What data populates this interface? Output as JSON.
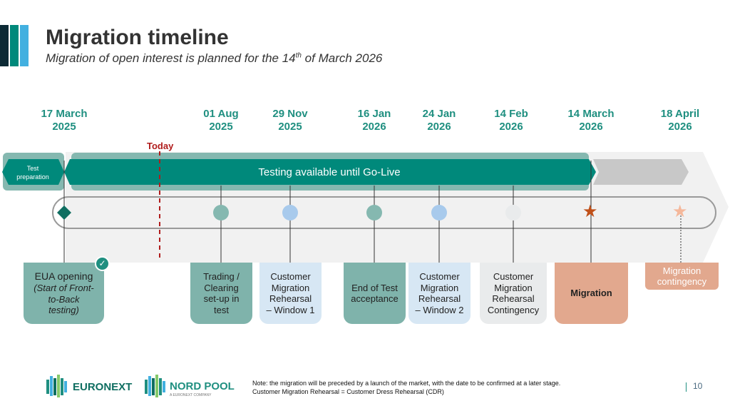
{
  "header": {
    "title": "Migration timeline",
    "subtitle_prefix": "Migration of open interest is planned for the 14",
    "subtitle_sup": "th",
    "subtitle_suffix": " of March 2026"
  },
  "dates": [
    {
      "day": "17 March",
      "year": "2025"
    },
    {
      "day": "01 Aug",
      "year": "2025"
    },
    {
      "day": "29 Nov",
      "year": "2025"
    },
    {
      "day": "16 Jan",
      "year": "2026"
    },
    {
      "day": "24 Jan",
      "year": "2026"
    },
    {
      "day": "14 Feb",
      "year": "2026"
    },
    {
      "day": "14 March",
      "year": "2026"
    },
    {
      "day": "18 April",
      "year": "2026"
    }
  ],
  "today_label": "Today",
  "bands": {
    "test_prep": [
      "Test",
      "preparation"
    ],
    "testing": "Testing available until Go-Live"
  },
  "milestones": {
    "eua": {
      "title": "EUA opening",
      "detail": [
        "(Start of Front-",
        "to-Back",
        "testing)"
      ]
    },
    "trading": [
      "Trading /",
      "Clearing",
      "set-up in",
      "test"
    ],
    "cmr1": [
      "Customer",
      "Migration",
      "Rehearsal",
      "– Window 1"
    ],
    "eot": [
      "End of Test",
      "acceptance"
    ],
    "cmr2": [
      "Customer",
      "Migration",
      "Rehearsal",
      "– Window 2"
    ],
    "cmrc": [
      "Customer",
      "Migration",
      "Rehearsal",
      "Contingency"
    ],
    "migration": "Migration",
    "contingency": [
      "Migration",
      "contingency"
    ]
  },
  "colors": {
    "teal_dark": "#00897b",
    "teal_light": "#85b8b0",
    "teal_box": "#7fb3ab",
    "light_blue": "#d7e7f4",
    "blue_dot": "#a8caec",
    "grey_box": "#e9ebec",
    "salmon": "#e2a88e",
    "star_dark": "#c0511a",
    "star_light": "#f5b89b",
    "today_red": "#b01c1c"
  },
  "logos": {
    "euronext": "EURONEXT",
    "nordpool": "NORD POOL",
    "nordpool_tag": "A EURONEXT COMPANY"
  },
  "footer": {
    "note_1": "Note: the migration will be preceded by a launch of the market, with the date to be confirmed at a later stage.",
    "note_2": "Customer Migration Rehearsal = Customer Dress Rehearsal (CDR)",
    "page_number": "10"
  }
}
